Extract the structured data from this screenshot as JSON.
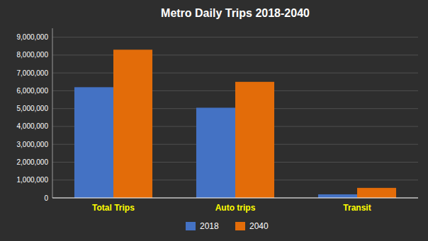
{
  "chart_data": {
    "type": "bar",
    "title": "Metro Daily Trips 2018-2040",
    "categories": [
      "Total Trips",
      "Auto trips",
      "Transit"
    ],
    "series": [
      {
        "name": "2018",
        "color": "#4472C4",
        "values": [
          6200000,
          5050000,
          200000
        ]
      },
      {
        "name": "2040",
        "color": "#E36C09",
        "values": [
          8300000,
          6500000,
          560000
        ]
      }
    ],
    "ylim": [
      0,
      9500000
    ],
    "yticks": [
      0,
      {
        "value": 1000000,
        "label": "1,000,000"
      },
      {
        "value": 2000000,
        "label": "2,000,000"
      },
      {
        "value": 3000000,
        "label": "3,000,000"
      },
      {
        "value": 4000000,
        "label": "4,000,000"
      },
      {
        "value": 5000000,
        "label": "5,000,000"
      },
      {
        "value": 6000000,
        "label": "6,000,000"
      },
      {
        "value": 7000000,
        "label": "7,000,000"
      },
      {
        "value": 8000000,
        "label": "8,000,000"
      },
      {
        "value": 9000000,
        "label": "9,000,000"
      }
    ],
    "grid": true,
    "legend": "bottom"
  }
}
